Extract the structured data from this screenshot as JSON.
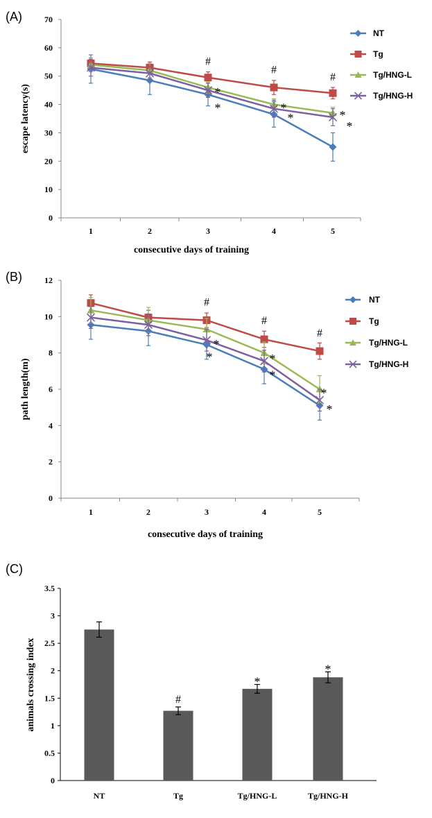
{
  "chart_data": [
    {
      "panel": "(A)",
      "type": "line",
      "ylabel": "escape latency(s)",
      "xlabel": "consecutive days  of  training",
      "categories": [
        "1",
        "2",
        "3",
        "4",
        "5"
      ],
      "ylim": [
        0,
        70
      ],
      "yticks": [
        "0",
        "10",
        "20",
        "30",
        "40",
        "50",
        "60",
        "70"
      ],
      "grid": false,
      "legend_position": "top-right",
      "series": [
        {
          "name": "NT",
          "color": "#4a7ebb",
          "marker": "diamond",
          "values": [
            52.5,
            48.5,
            43.5,
            36.5,
            25
          ],
          "errors": [
            5,
            5,
            4,
            4.5,
            5
          ]
        },
        {
          "name": "Tg",
          "color": "#be4b48",
          "marker": "square",
          "values": [
            54.5,
            53,
            49.5,
            46,
            44
          ],
          "errors": [
            2,
            2,
            2,
            2.5,
            2
          ]
        },
        {
          "name": "Tg/HNG-L",
          "color": "#98b954",
          "marker": "triangle",
          "values": [
            54,
            52,
            46,
            40,
            37
          ],
          "errors": [
            2.5,
            2.5,
            2,
            2,
            2
          ]
        },
        {
          "name": "Tg/HNG-H",
          "color": "#7d60a0",
          "marker": "x",
          "values": [
            53,
            51,
            45,
            38.5,
            35.5
          ],
          "errors": [
            3,
            2.5,
            2.5,
            3,
            3
          ]
        }
      ],
      "annotations": [
        {
          "text": "#",
          "x_index": 2,
          "y": 54
        },
        {
          "text": "#",
          "x_index": 3,
          "y": 51
        },
        {
          "text": "#",
          "x_index": 4,
          "y": 48.5
        },
        {
          "text": "*",
          "x_index": 2,
          "y": 45,
          "dx": 14
        },
        {
          "text": "*",
          "x_index": 2,
          "y": 39.5,
          "dx": 14
        },
        {
          "text": "*",
          "x_index": 3,
          "y": 39.5,
          "dx": 14
        },
        {
          "text": "*",
          "x_index": 3,
          "y": 36,
          "dx": 24
        },
        {
          "text": "*",
          "x_index": 4,
          "y": 37,
          "dx": 14
        },
        {
          "text": "*",
          "x_index": 4,
          "y": 33,
          "dx": 24
        }
      ]
    },
    {
      "panel": "(B)",
      "type": "line",
      "ylabel": "path length(m)",
      "xlabel": "consecutive days of training",
      "categories": [
        "1",
        "2",
        "3",
        "4",
        "5"
      ],
      "ylim": [
        0,
        12
      ],
      "yticks": [
        "0",
        "2",
        "4",
        "6",
        "8",
        "10",
        "12"
      ],
      "grid": false,
      "legend_position": "top-right",
      "series": [
        {
          "name": "NT",
          "color": "#4a7ebb",
          "marker": "diamond",
          "values": [
            9.55,
            9.2,
            8.45,
            7.1,
            5.1
          ],
          "errors": [
            0.8,
            0.8,
            0.8,
            0.8,
            0.8
          ]
        },
        {
          "name": "Tg",
          "color": "#be4b48",
          "marker": "square",
          "values": [
            10.75,
            9.95,
            9.8,
            8.75,
            8.1
          ],
          "errors": [
            0.45,
            0.4,
            0.4,
            0.45,
            0.45
          ]
        },
        {
          "name": "Tg/HNG-L",
          "color": "#98b954",
          "marker": "triangle",
          "values": [
            10.35,
            9.8,
            9.3,
            8.0,
            6.0
          ],
          "errors": [
            0.7,
            0.7,
            0.6,
            0.6,
            0.75
          ]
        },
        {
          "name": "Tg/HNG-H",
          "color": "#7d60a0",
          "marker": "x",
          "values": [
            9.95,
            9.55,
            8.7,
            7.55,
            5.4
          ],
          "errors": [
            0.6,
            0.6,
            0.6,
            0.6,
            0.6
          ]
        }
      ],
      "annotations": [
        {
          "text": "#",
          "x_index": 2,
          "y": 10.6
        },
        {
          "text": "#",
          "x_index": 3,
          "y": 9.6
        },
        {
          "text": "#",
          "x_index": 4,
          "y": 8.9
        },
        {
          "text": "*",
          "x_index": 2,
          "y": 8.6,
          "dx": 14
        },
        {
          "text": "*",
          "x_index": 2,
          "y": 7.9,
          "dx": 4
        },
        {
          "text": "*",
          "x_index": 3,
          "y": 7.8,
          "dx": 12
        },
        {
          "text": "*",
          "x_index": 3,
          "y": 6.9,
          "dx": 12
        },
        {
          "text": "*",
          "x_index": 4,
          "y": 5.9,
          "dx": 6
        },
        {
          "text": "*",
          "x_index": 4,
          "y": 5.0,
          "dx": 14
        }
      ]
    },
    {
      "panel": "(C)",
      "type": "bar",
      "ylabel": "animals  crossing  index",
      "xlabel": "",
      "categories": [
        "NT",
        "Tg",
        "Tg/HNG-L",
        "Tg/HNG-H"
      ],
      "values": [
        2.75,
        1.27,
        1.67,
        1.88
      ],
      "errors": [
        0.14,
        0.07,
        0.08,
        0.1
      ],
      "ylim": [
        0,
        3.5
      ],
      "yticks": [
        "0",
        "0.5",
        "1",
        "1.5",
        "2",
        "2.5",
        "3",
        "3.5"
      ],
      "bar_color": "#595959",
      "grid": false,
      "annotations": [
        {
          "text": "#",
          "category_index": 1
        },
        {
          "text": "*",
          "category_index": 2
        },
        {
          "text": "*",
          "category_index": 3
        }
      ]
    }
  ]
}
